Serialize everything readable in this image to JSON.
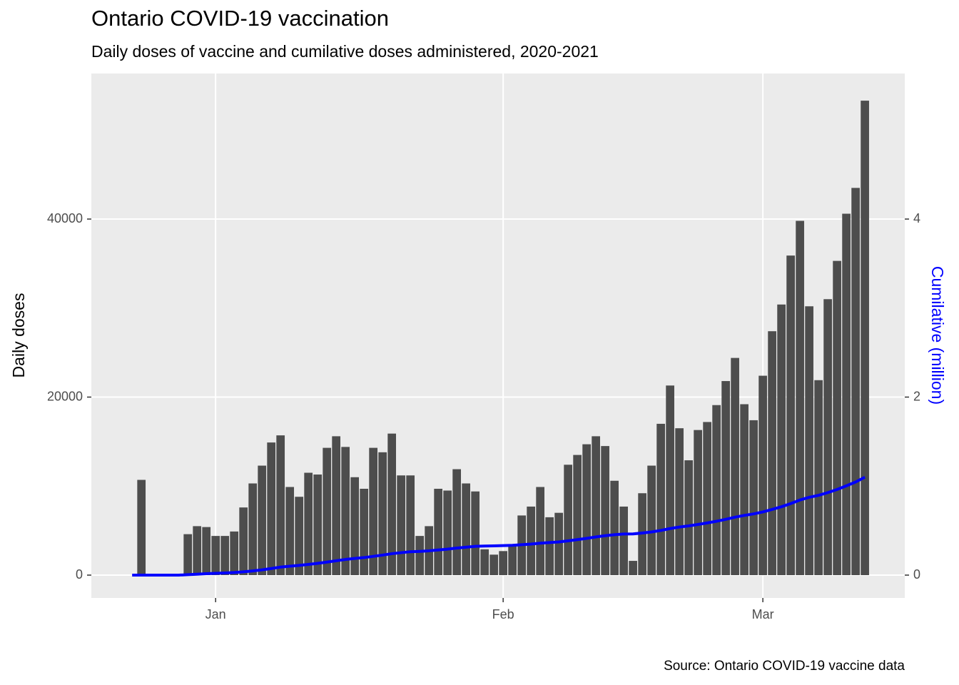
{
  "chart_data": {
    "type": "bar",
    "title": "Ontario COVID-19 vaccination",
    "subtitle": "Daily doses of vaccine and cumilative doses administered, 2020-2021",
    "caption": "Source: Ontario COVID-19 vaccine data",
    "ylabel": "Daily doses",
    "y2label": "Cumilative (million)",
    "x": [
      -9,
      -8,
      -7,
      -6,
      -5,
      -4,
      -3,
      -2,
      -1,
      0,
      1,
      2,
      3,
      4,
      5,
      6,
      7,
      8,
      9,
      10,
      11,
      12,
      13,
      14,
      15,
      16,
      17,
      18,
      19,
      20,
      21,
      22,
      23,
      24,
      25,
      26,
      27,
      28,
      29,
      30,
      31,
      32,
      33,
      34,
      35,
      36,
      37,
      38,
      39,
      40,
      41,
      42,
      43,
      44,
      45,
      46,
      47,
      48,
      49,
      50,
      51,
      52,
      53,
      54,
      55,
      56,
      57,
      58,
      59,
      60,
      61,
      62,
      63,
      64,
      65,
      66,
      67,
      68,
      69,
      70
    ],
    "xlim": [
      -13.4,
      74.3
    ],
    "xticks": [
      {
        "value": 0,
        "label": "Jan"
      },
      {
        "value": 31,
        "label": "Feb"
      },
      {
        "value": 59,
        "label": "Mar"
      }
    ],
    "ylim": [
      -2565,
      56353
    ],
    "yticks": [
      0,
      20000,
      40000
    ],
    "y2lim": [
      -0.2565,
      5.6353
    ],
    "y2ticks": [
      0,
      2,
      4
    ],
    "grid": true,
    "series": [
      {
        "type": "bar",
        "color": "#4d4d4d",
        "values": [
          null,
          10700,
          null,
          null,
          null,
          null,
          4600,
          5500,
          5400,
          4400,
          4400,
          4900,
          7600,
          10300,
          12300,
          14900,
          15700,
          9900,
          8800,
          11500,
          11300,
          14300,
          15600,
          14400,
          11000,
          9700,
          14300,
          13800,
          15900,
          11200,
          11200,
          4400,
          5500,
          9700,
          9500,
          11900,
          10300,
          9400,
          2900,
          2300,
          2700,
          3400,
          6700,
          7700,
          9900,
          6500,
          7000,
          12400,
          13500,
          14700,
          15600,
          14500,
          10600,
          7700,
          1600,
          9200,
          12300,
          17000,
          21300,
          16500,
          12900,
          16300,
          17200,
          19100,
          21800,
          24400,
          19200,
          17400,
          22400,
          27400,
          30400,
          35900,
          39800,
          30200,
          21900,
          31000,
          35300,
          40600,
          43500,
          53300
        ]
      },
      {
        "type": "line",
        "axis": "y2",
        "color": "#0000ff",
        "values": [
          0,
          0,
          0,
          0,
          0,
          0,
          0.005,
          0.01,
          0.016,
          0.02,
          0.024,
          0.029,
          0.037,
          0.047,
          0.059,
          0.074,
          0.09,
          0.1,
          0.109,
          0.12,
          0.132,
          0.146,
          0.161,
          0.176,
          0.187,
          0.197,
          0.211,
          0.225,
          0.241,
          0.252,
          0.263,
          0.267,
          0.273,
          0.283,
          0.292,
          0.304,
          0.314,
          0.324,
          0.327,
          0.329,
          0.332,
          0.335,
          0.342,
          0.349,
          0.359,
          0.366,
          0.373,
          0.385,
          0.399,
          0.413,
          0.429,
          0.443,
          0.454,
          0.462,
          0.463,
          0.473,
          0.485,
          0.502,
          0.523,
          0.54,
          0.553,
          0.569,
          0.586,
          0.605,
          0.627,
          0.651,
          0.671,
          0.688,
          0.71,
          0.738,
          0.768,
          0.804,
          0.844,
          0.874,
          0.896,
          0.927,
          0.962,
          1.003,
          1.046,
          1.1
        ]
      }
    ]
  }
}
